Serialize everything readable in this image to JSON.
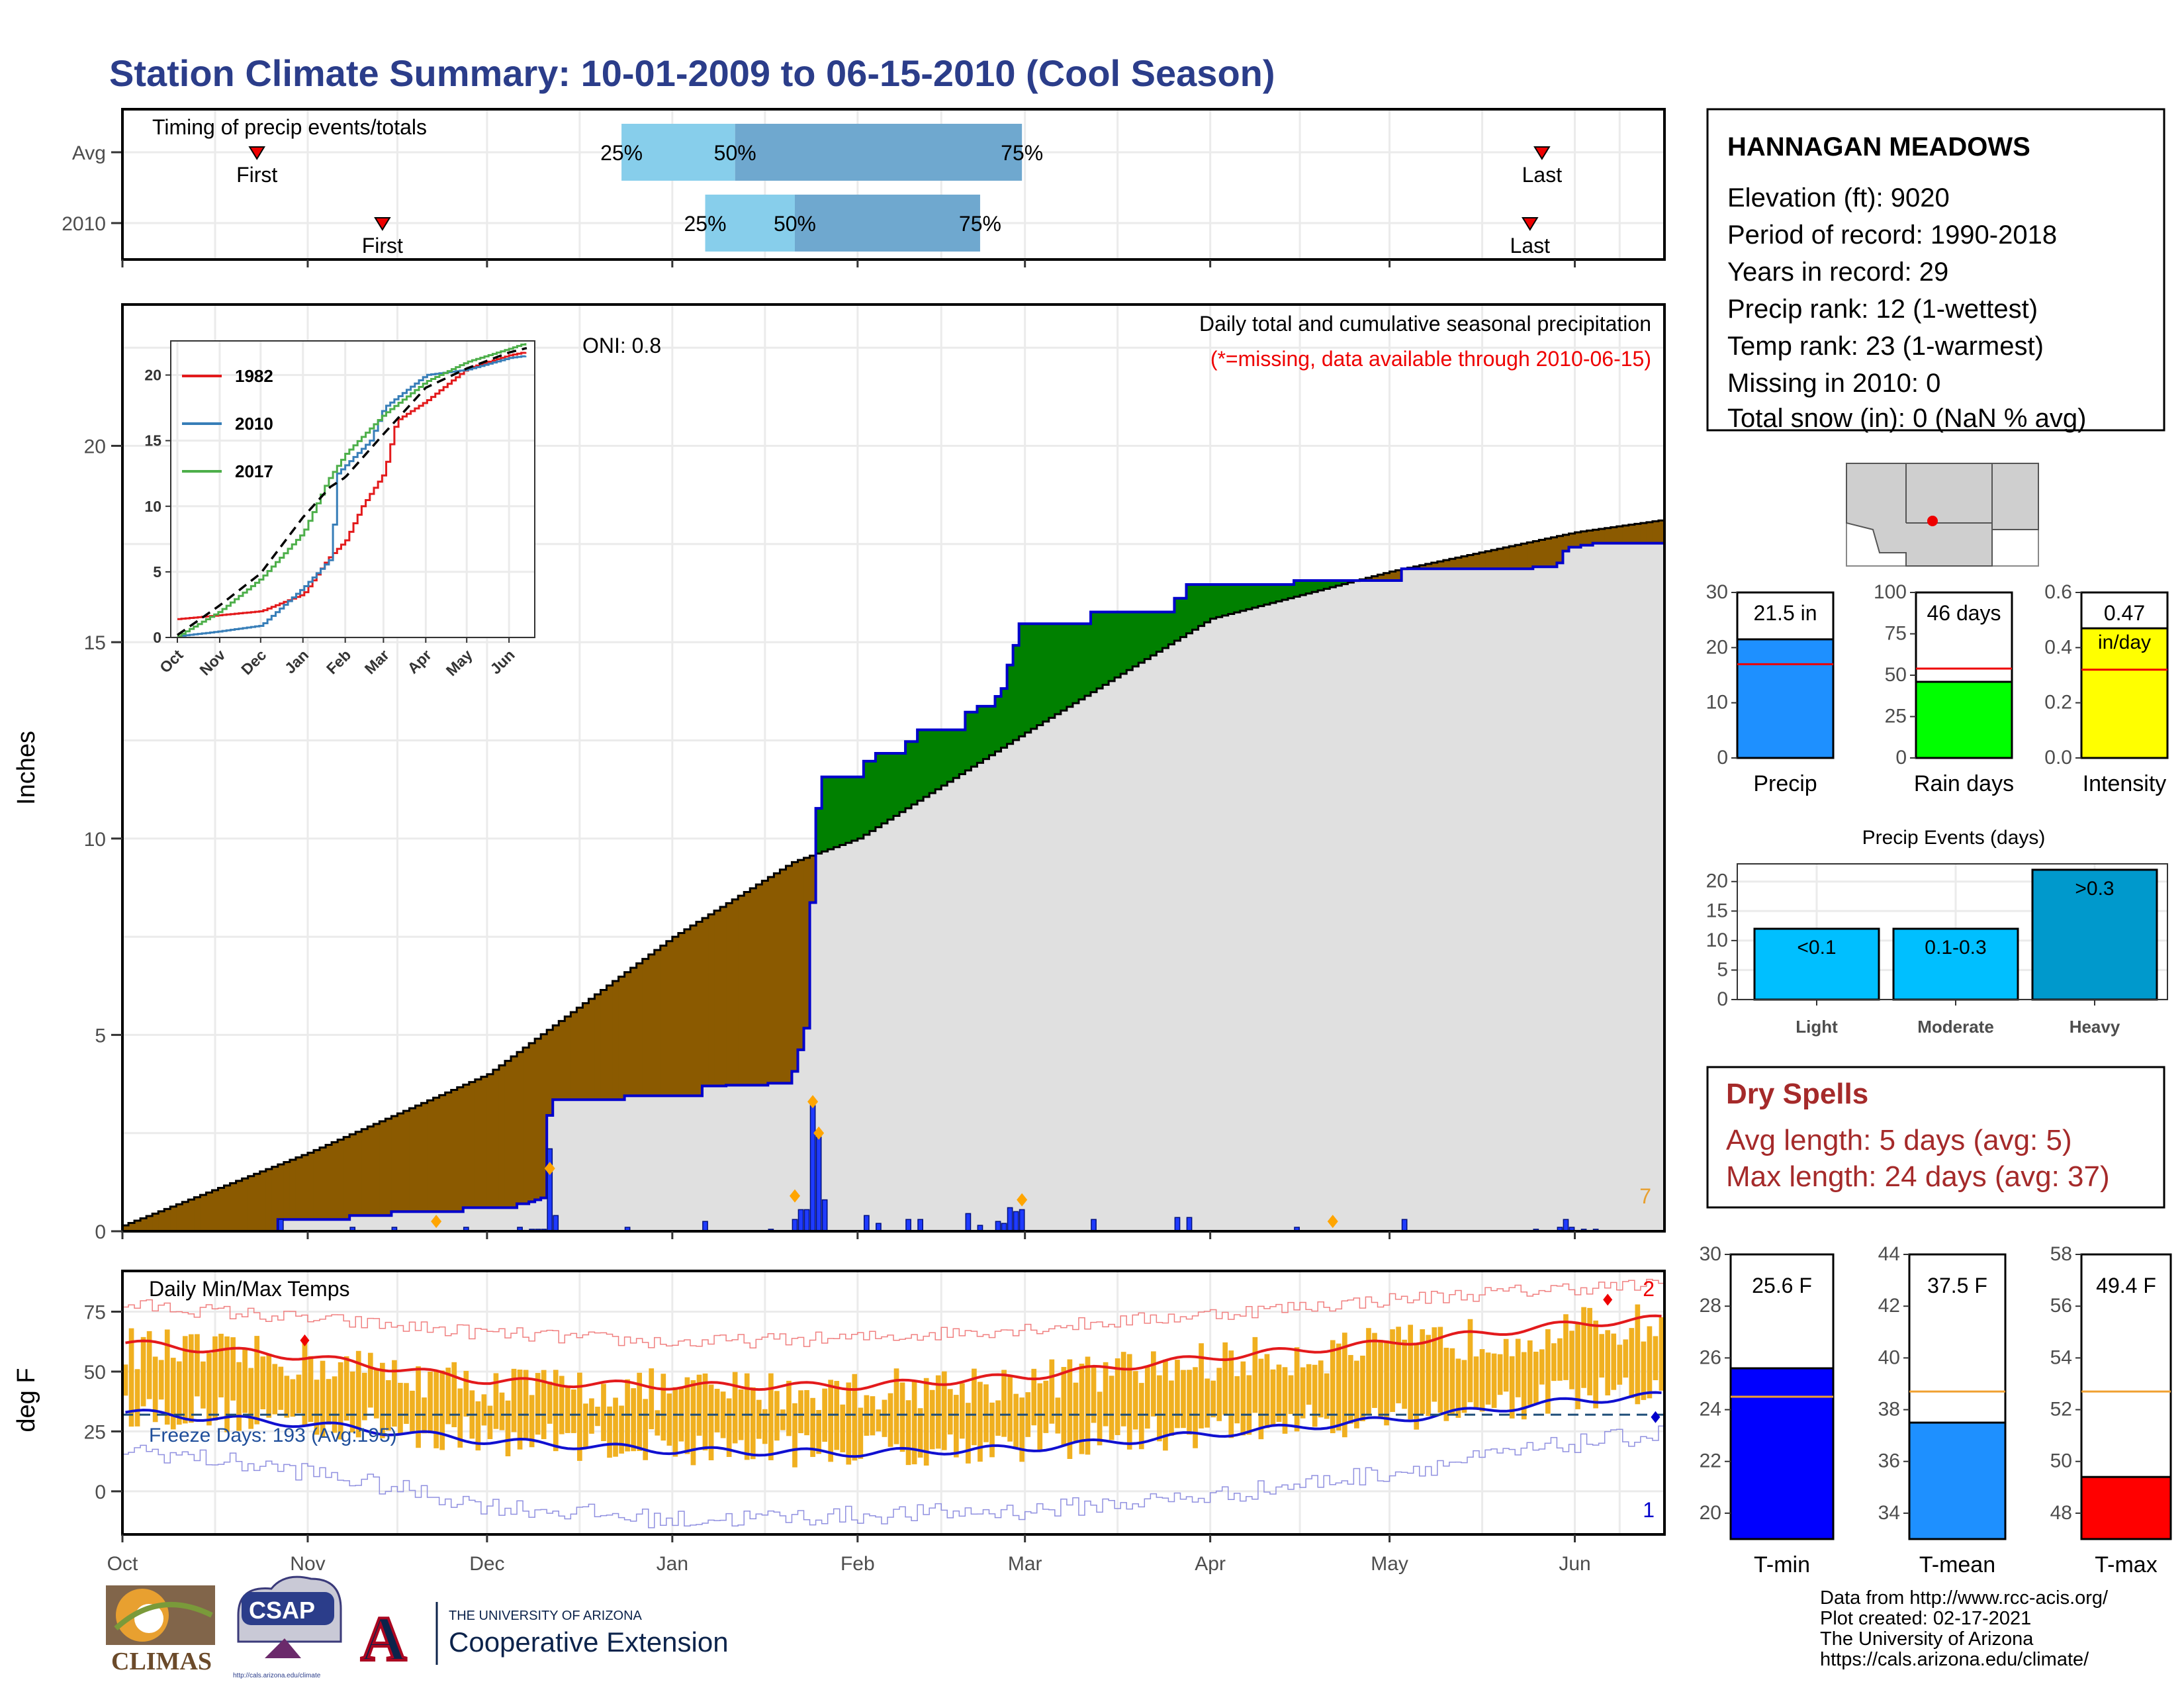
{
  "title": "Station Climate Summary: 10-01-2009 to 06-15-2010 (Cool Season)",
  "timing_panel": {
    "label": "Timing of precip events/totals",
    "rows": [
      {
        "name": "Avg",
        "first_date": "2009-10-23",
        "last_date": "2010-05-26",
        "p25_date": "2009-12-23",
        "p50_date": "2010-01-11",
        "p75_date": "2010-02-28",
        "first_label": "First",
        "last_label": "Last",
        "p25_label": "25%",
        "p50_label": "50%",
        "p75_label": "75%"
      },
      {
        "name": "2010",
        "first_date": "2009-11-13",
        "last_date": "2010-05-24",
        "p25_date": "2010-01-06",
        "p50_date": "2010-01-21",
        "p75_date": "2010-02-21",
        "first_label": "First",
        "last_label": "Last",
        "p25_label": "25%",
        "p50_label": "50%",
        "p75_label": "75%"
      }
    ]
  },
  "precip_panel": {
    "ylabel": "Inches",
    "yticks": [
      0,
      5,
      10,
      15,
      20
    ],
    "ylim": [
      0,
      23.6
    ],
    "oni_label": "ONI: 0.8",
    "subtitle": "Daily total and cumulative seasonal precipitation",
    "missing_note": "(*=missing, data available through 2010-06-15)",
    "missing_count": "7",
    "colors": {
      "above_avg": "#008000",
      "below_avg": "#8b5a00",
      "avg_area": "#e0e0e0",
      "cumulative_line": "#0000cc",
      "daily_bar": "#1f3bff",
      "marker": "#ffa500"
    }
  },
  "temp_panel": {
    "ylabel": "deg F",
    "label": "Daily Min/Max Temps",
    "freeze_label": "Freeze Days: 193 (Avg:195)",
    "yticks": [
      0,
      25,
      50,
      75
    ],
    "ylim": [
      -18,
      92
    ],
    "record_high_count": "2",
    "record_low_count": "1",
    "colors": {
      "bar": "#f0b020",
      "avg_max": "#e31a1c",
      "avg_min": "#1010d0",
      "rec_max": "#f08080",
      "rec_min": "#9090e0",
      "freeze": "#1f4e79"
    }
  },
  "x_axis": {
    "ticks": [
      "Oct",
      "Nov",
      "Dec",
      "Jan",
      "Feb",
      "Mar",
      "Apr",
      "May",
      "Jun"
    ],
    "start": "2009-10-01",
    "end": "2010-06-15"
  },
  "inset": {
    "yticks": [
      0,
      5,
      10,
      15,
      20
    ],
    "xticks": [
      "Oct",
      "Nov",
      "Dec",
      "Jan",
      "Feb",
      "Mar",
      "Apr",
      "May",
      "Jun"
    ],
    "legend": [
      {
        "name": "1982",
        "color": "#e31a1c"
      },
      {
        "name": "2010",
        "color": "#377eb8"
      },
      {
        "name": "2017",
        "color": "#4daf4a"
      }
    ]
  },
  "station_box": {
    "name": "HANNAGAN MEADOWS",
    "lines": [
      "Elevation (ft): 9020",
      "Period of record: 1990-2018",
      "Years in record: 29",
      "Precip rank: 12 (1-wettest)",
      "Temp rank: 23 (1-warmest)",
      "Missing in 2010: 0",
      "Total snow (in): 0 (NaN % avg)"
    ]
  },
  "summary_bars": [
    {
      "name": "Precip",
      "value": 21.5,
      "avg": 17,
      "label": "21.5 in",
      "color": "#1e90ff",
      "yticks": [
        0,
        10,
        20,
        30
      ],
      "ymax": 30
    },
    {
      "name": "Rain days",
      "value": 46,
      "avg": 54,
      "label": "46 days",
      "color": "#00ff00",
      "yticks": [
        0,
        25,
        50,
        75,
        100
      ],
      "ymax": 100
    },
    {
      "name": "Intensity",
      "value": 0.47,
      "avg": 0.32,
      "label": "0.47",
      "sublabel": "in/day",
      "color": "#ffff00",
      "yticks": [
        "0.0",
        "0.2",
        "0.4",
        "0.6"
      ],
      "ymax": 0.6
    }
  ],
  "precip_events": {
    "title": "Precip Events (days)",
    "yticks": [
      0,
      5,
      10,
      15,
      20
    ],
    "ymax": 23,
    "bars": [
      {
        "name": "Light",
        "label": "<0.1",
        "value": 12
      },
      {
        "name": "Moderate",
        "label": "0.1-0.3",
        "value": 12
      },
      {
        "name": "Heavy",
        "label": ">0.3",
        "value": 22
      }
    ],
    "colors": [
      "#00bfff",
      "#00bfff",
      "#0099cc"
    ]
  },
  "dry_spells": {
    "title": "Dry Spells",
    "lines": [
      "Avg length: 5 days (avg: 5)",
      "Max length: 24 days (avg: 37)"
    ],
    "color": "#a52a2a"
  },
  "temp_bars": [
    {
      "name": "T-min",
      "value": 25.6,
      "avg": 24.5,
      "label": "25.6 F",
      "color": "#0000ff",
      "ymin": 19,
      "ymax": 30,
      "yticks": [
        20,
        22,
        24,
        26,
        28,
        30
      ]
    },
    {
      "name": "T-mean",
      "value": 37.5,
      "avg": 38.7,
      "label": "37.5 F",
      "color": "#1e90ff",
      "ymin": 33,
      "ymax": 44,
      "yticks": [
        34,
        36,
        38,
        40,
        42,
        44
      ]
    },
    {
      "name": "T-max",
      "value": 49.4,
      "avg": 52.7,
      "label": "49.4 F",
      "color": "#ff0000",
      "ymin": 47,
      "ymax": 58,
      "yticks": [
        48,
        50,
        52,
        54,
        56,
        58
      ]
    }
  ],
  "credits": [
    "Data from http://www.rcc-acis.org/",
    "Plot created: 02-17-2021",
    "The University of Arizona",
    "https://cals.arizona.edu/climate/"
  ],
  "logos": {
    "climas": "CLIMAS",
    "csap": "CSAP",
    "csap_url": "http://cals.arizona.edu/climate",
    "ua_top": "THE UNIVERSITY OF ARIZONA",
    "ua_bottom": "Cooperative Extension",
    "ua_letter": "A"
  }
}
